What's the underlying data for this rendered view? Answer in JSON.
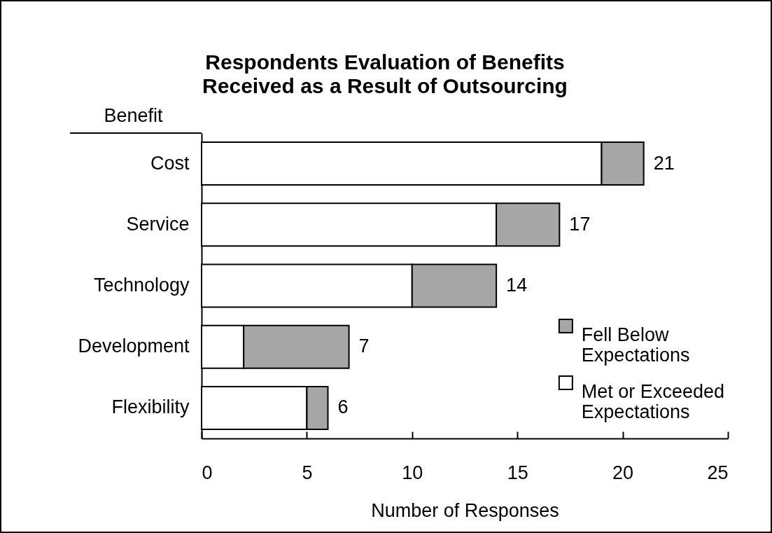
{
  "chart_data": {
    "type": "bar",
    "orientation": "horizontal",
    "stacked": true,
    "title": "Respondents Evaluation of Benefits Received as a Result of Outsourcing",
    "xlabel": "Number of Responses",
    "ylabel": "Benefit",
    "categories": [
      "Cost",
      "Service",
      "Technology",
      "Development",
      "Flexibility"
    ],
    "series": [
      {
        "name": "Met or Exceeded Expectations",
        "color": "#ffffff",
        "values": [
          19,
          14,
          10,
          2,
          5
        ]
      },
      {
        "name": "Fell Below Expectations",
        "color": "#a6a6a6",
        "values": [
          2,
          3,
          4,
          5,
          1
        ]
      }
    ],
    "totals": [
      "21",
      "17",
      "14",
      "7",
      "6"
    ],
    "xlim": [
      0,
      25
    ],
    "xticks": [
      0,
      5,
      10,
      15,
      20,
      25
    ],
    "legend": "right"
  }
}
